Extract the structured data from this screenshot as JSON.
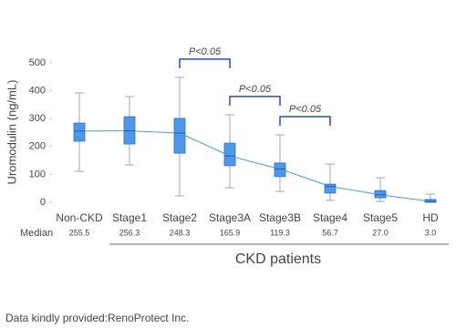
{
  "chart_data": {
    "type": "box",
    "ylabel": "Uromodulin (ng/mL)",
    "categories": [
      "Non-CKD",
      "Stage1",
      "Stage2",
      "Stage3A",
      "Stage3B",
      "Stage4",
      "Stage5",
      "HD"
    ],
    "boxes": {
      "q1": [
        219,
        209,
        176,
        131,
        92,
        33,
        16,
        0
      ],
      "q3": [
        284,
        307,
        301,
        212,
        141,
        65,
        42,
        10
      ],
      "whisker_low": [
        111,
        134,
        23,
        52,
        39,
        7,
        3,
        0
      ],
      "whisker_high": [
        392,
        379,
        448,
        314,
        242,
        137,
        88,
        29
      ]
    },
    "medians": {
      "label": "Median",
      "values": [
        255.5,
        256.3,
        248.3,
        165.9,
        119.3,
        56.7,
        27.0,
        3.0
      ],
      "value_labels": [
        "255.5",
        "256.3",
        "248.3",
        "165.9",
        "119.3",
        "56.7",
        "27.0",
        "3.0"
      ]
    },
    "color": "#4f97e8",
    "ylim": [
      0,
      500
    ],
    "yticks": [
      0,
      100,
      200,
      300,
      400,
      500
    ],
    "annotations": [
      {
        "text": "P<0.05",
        "between": [
          2,
          3
        ]
      },
      {
        "text": "P<0.05",
        "between": [
          3,
          4
        ]
      },
      {
        "text": "P<0.05",
        "between": [
          4,
          5
        ]
      }
    ],
    "group_label": "CKD patients",
    "group_range": [
      1,
      7
    ]
  },
  "footer": "Data kindly provided:RenoProtect Inc."
}
